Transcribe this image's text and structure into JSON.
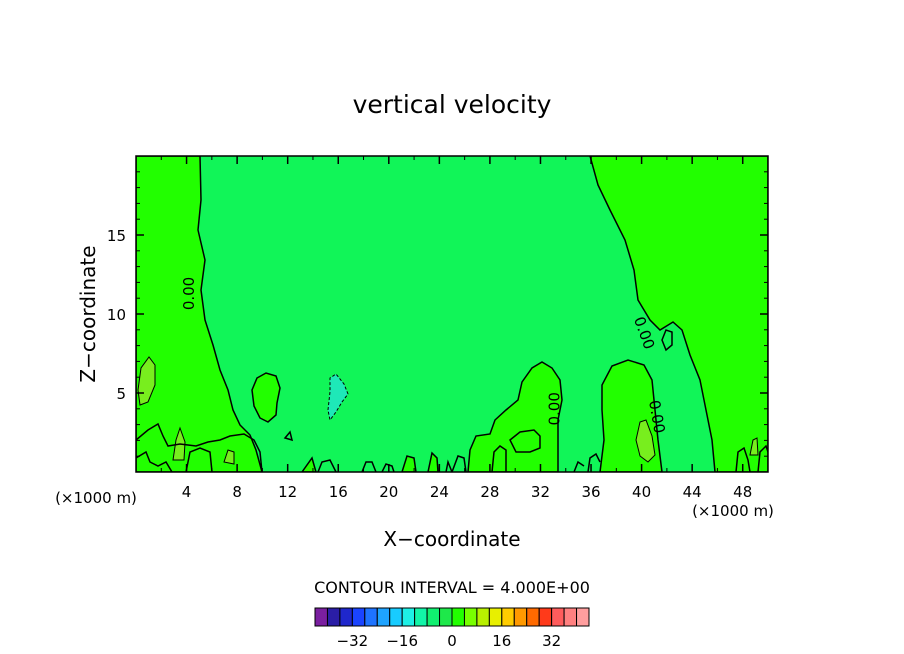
{
  "chart_data": {
    "type": "contour",
    "title": "vertical velocity",
    "xlabel": "X−coordinate",
    "ylabel": "Z−coordinate",
    "x_unit": "(×1000 m)",
    "y_unit": "(×1000 m)",
    "xlim": [
      0,
      50
    ],
    "ylim": [
      0,
      20
    ],
    "x_ticks": [
      "4",
      "8",
      "12",
      "16",
      "20",
      "24",
      "28",
      "32",
      "36",
      "40",
      "44",
      "48"
    ],
    "y_ticks": [
      "5",
      "10",
      "15"
    ],
    "contour_labels": [
      "0.00",
      "0.00",
      "0.00",
      "0.00"
    ],
    "contour_interval_text": "CONTOUR INTERVAL = 4.000E+00",
    "colorbar": {
      "tick_labels": [
        "−32",
        "−16",
        "0",
        "16",
        "32"
      ],
      "colors": [
        "#7a1fa0",
        "#2a1da6",
        "#1f27cc",
        "#1a44ff",
        "#1e73ff",
        "#1ea3ff",
        "#18ccff",
        "#1ef0e6",
        "#12f5a8",
        "#10f070",
        "#1ee84a",
        "#22ff00",
        "#78ff00",
        "#b8f000",
        "#e8ef00",
        "#ffcc00",
        "#ff9900",
        "#ff6a00",
        "#ff3a1a",
        "#ff5c5c",
        "#ff8080",
        "#ff9e9e"
      ]
    },
    "fill_colors": {
      "background": "#11f558",
      "positive": "#22ff00",
      "strong_positive": "#78ee1e",
      "negative": "#1ee8b8"
    }
  }
}
